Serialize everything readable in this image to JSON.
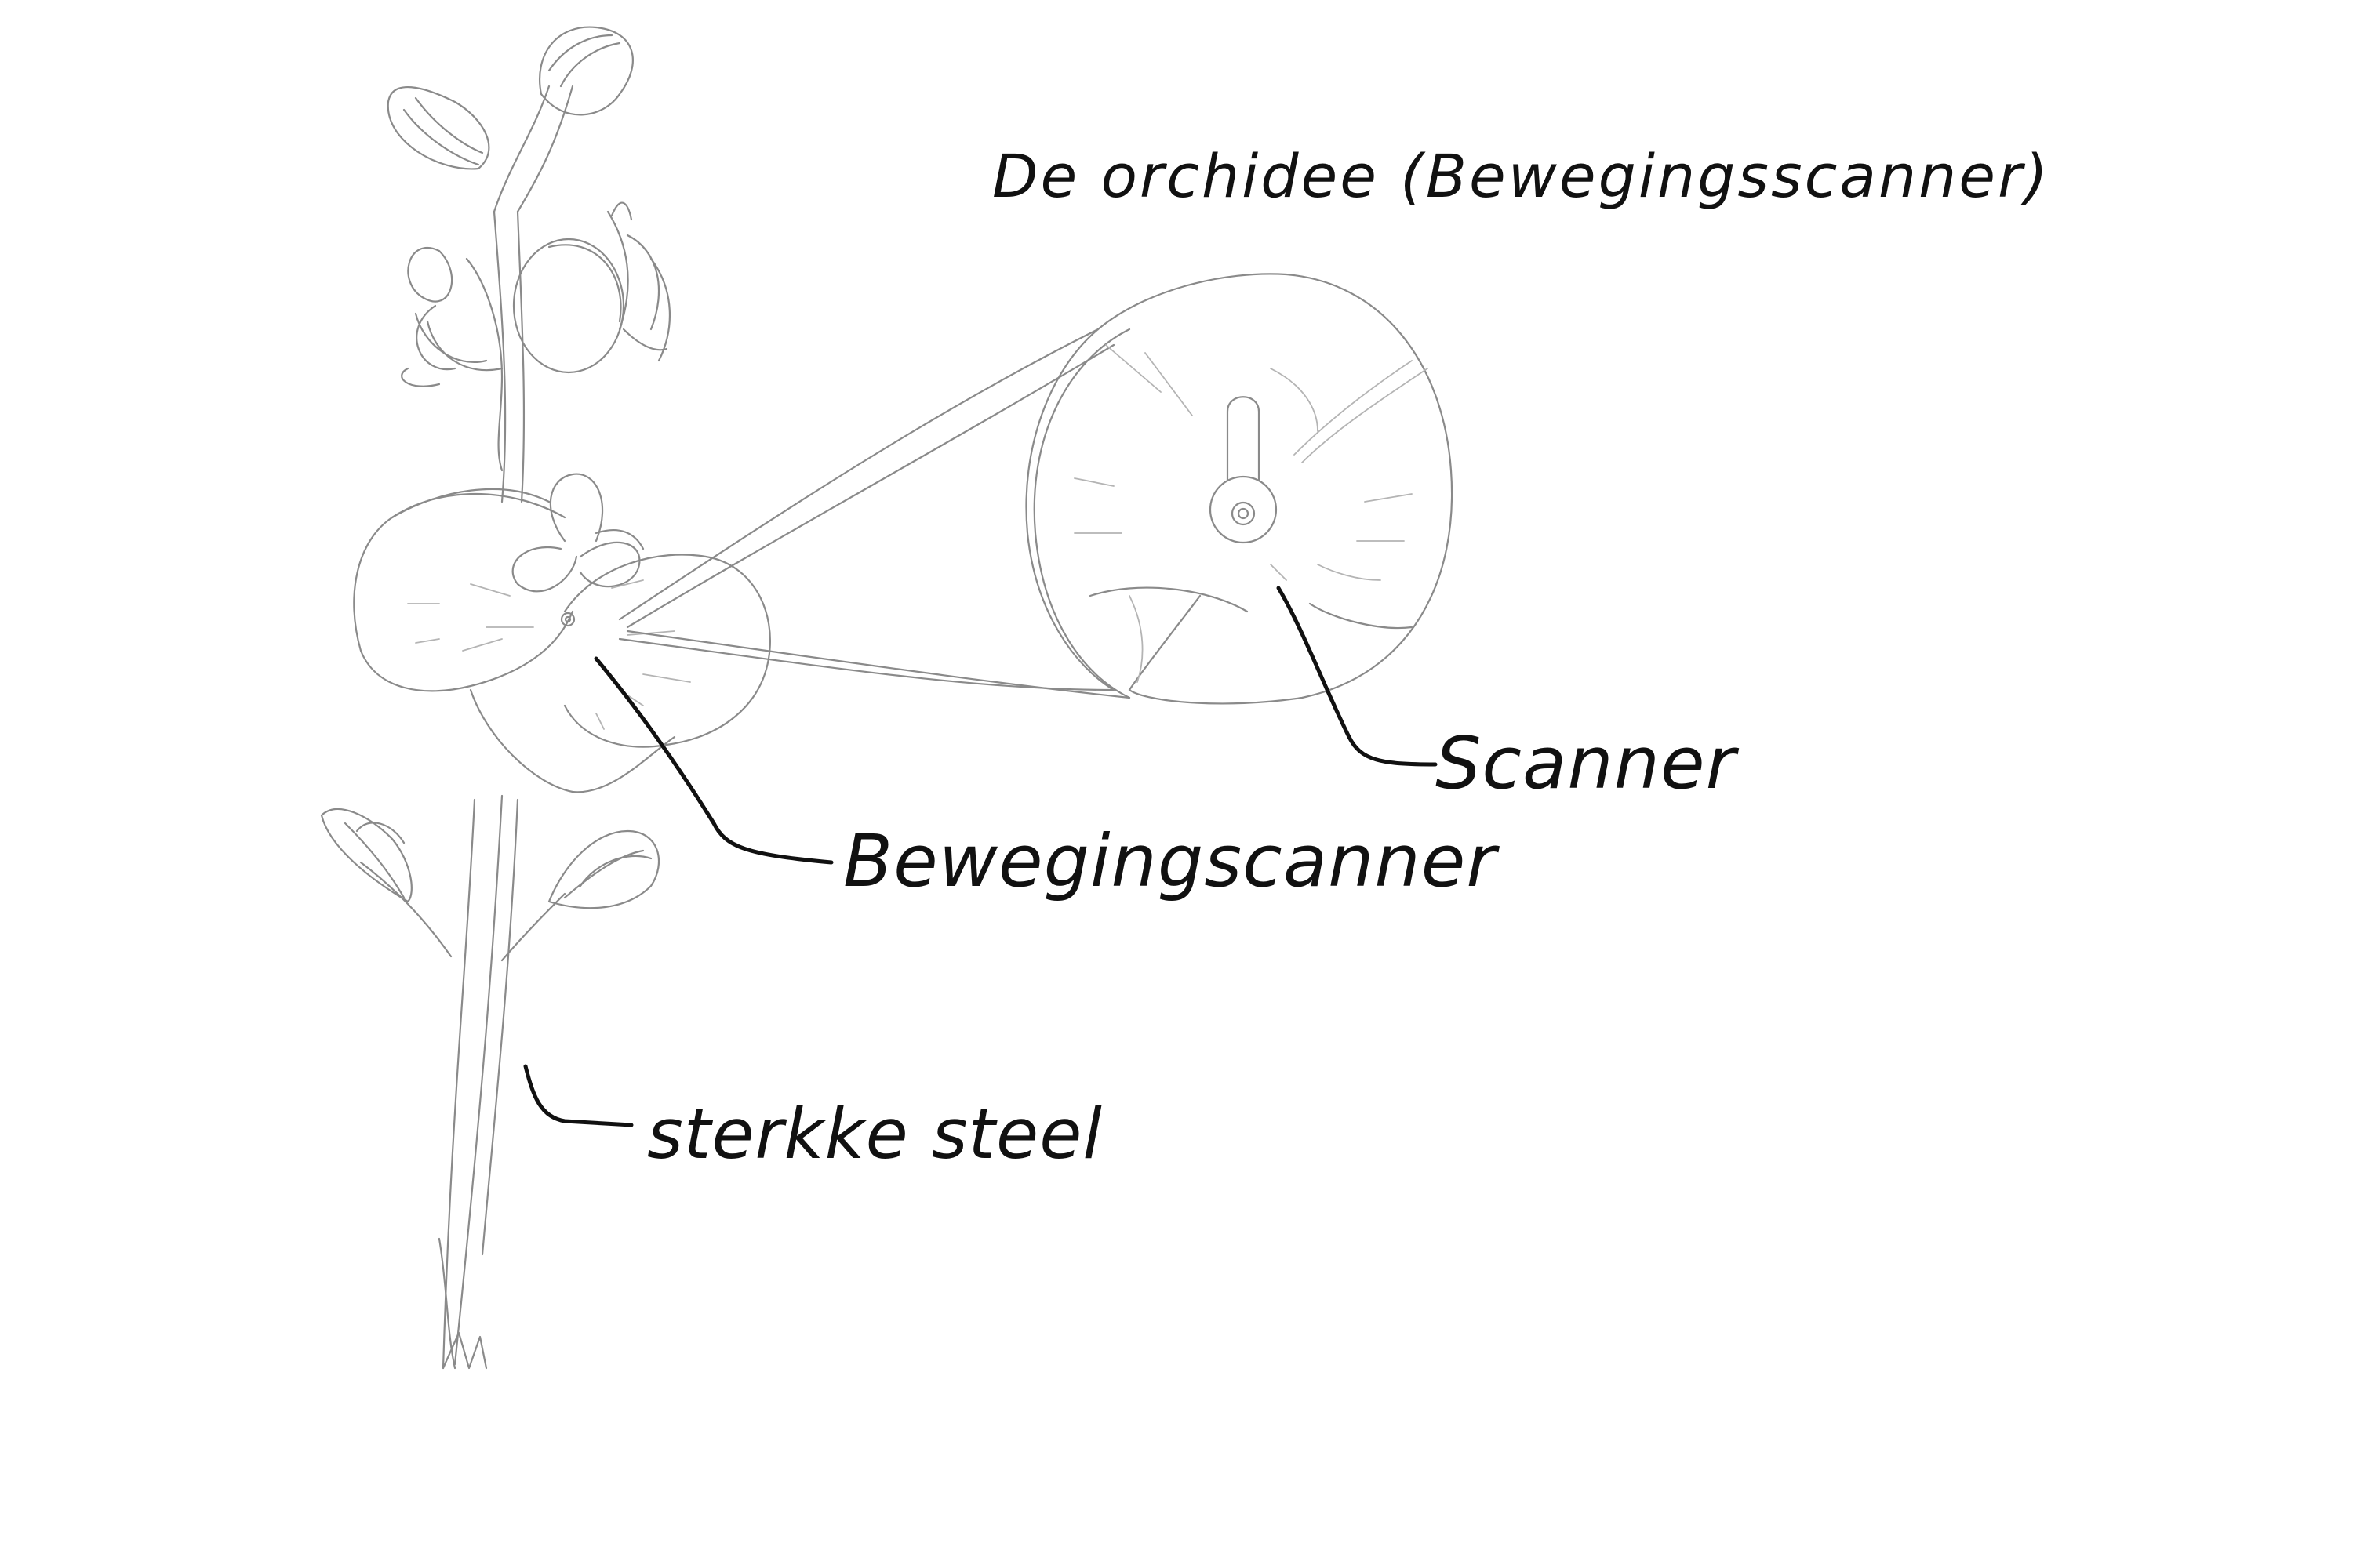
{
  "diagram": {
    "title": "De orchidee (Bewegingsscanner)",
    "labels": {
      "scanner": "Scanner",
      "motion_scanner": "Bewegingscanner",
      "stem": "sterkke steel"
    },
    "colors": {
      "pencil": "#8a8a8a",
      "ink": "#111111",
      "background": "#ffffff"
    }
  }
}
